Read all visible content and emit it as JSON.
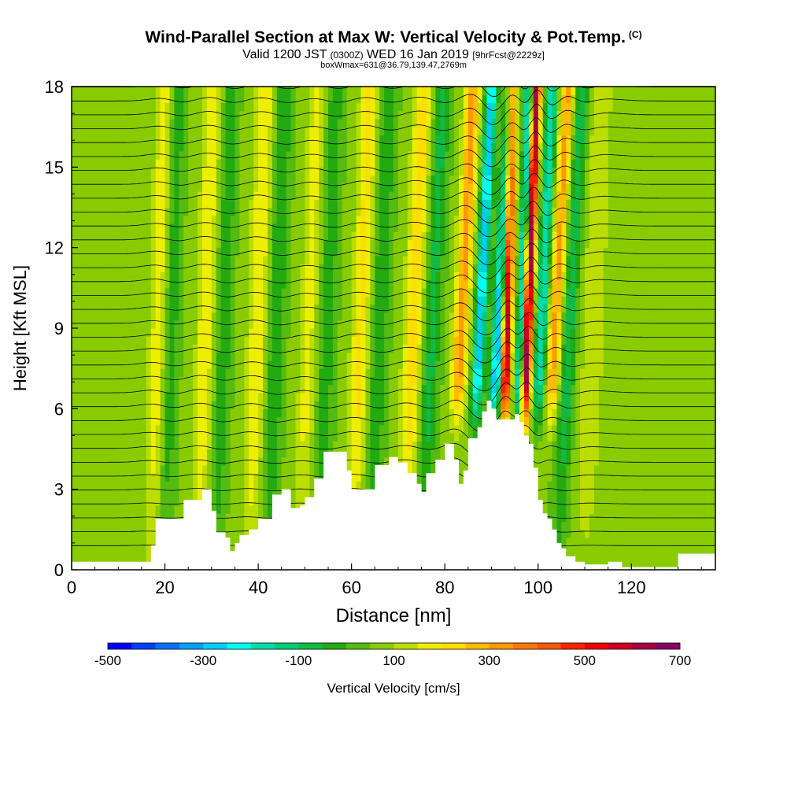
{
  "header": {
    "title": "Wind-Parallel Section at Max W: Vertical Velocity & Pot.Temp.",
    "copyright": "(C)",
    "valid_a": "Valid 1200 JST",
    "valid_utc": "(0300Z)",
    "valid_b": "WED 16 Jan 2019",
    "forecast": "[9hrFcst@2229z]",
    "boxinfo": "boxWmax=631@36.79,139.47,2769m"
  },
  "chart_data": {
    "type": "heatmap",
    "xlabel": "Distance [nm]",
    "ylabel": "Height [Kft MSL]",
    "xlim": [
      0,
      138
    ],
    "ylim": [
      0,
      18
    ],
    "xticks": [
      0,
      20,
      40,
      60,
      80,
      100,
      120
    ],
    "yticks": [
      0,
      3,
      6,
      9,
      12,
      15,
      18
    ],
    "colorbar": {
      "label": "Vertical Velocity [cm/s]",
      "range": [
        -500,
        700
      ],
      "step": 50,
      "ticks": [
        -500,
        -300,
        -100,
        100,
        300,
        500,
        700
      ],
      "colors": [
        "#0000ff",
        "#0040ff",
        "#0070ff",
        "#00a0ff",
        "#00ccff",
        "#00ffee",
        "#00ddaa",
        "#00cc77",
        "#10bb44",
        "#22aa11",
        "#55bb11",
        "#88cc00",
        "#bbdd00",
        "#eeee00",
        "#ffdd00",
        "#ffbb00",
        "#ff9900",
        "#ff7700",
        "#ff5500",
        "#ff2200",
        "#ee0000",
        "#cc0022",
        "#aa0044",
        "#880066"
      ]
    },
    "terrain": {
      "x": [
        0,
        12,
        17,
        18,
        22,
        24,
        27,
        28,
        30,
        31,
        33,
        34,
        35,
        36,
        38,
        40,
        43,
        45,
        47,
        49,
        50,
        52,
        54,
        57,
        59,
        60,
        62,
        65,
        68,
        70,
        72,
        74,
        75,
        76,
        78,
        80,
        82,
        83,
        84,
        85,
        87,
        88,
        89,
        90,
        91,
        92,
        94,
        95,
        96,
        97,
        98,
        99,
        100,
        101,
        102,
        103,
        104,
        105,
        106,
        108,
        110,
        113,
        115,
        118,
        128,
        130,
        138
      ],
      "height": [
        0.3,
        0.3,
        0.9,
        1.9,
        1.9,
        2.6,
        2.6,
        3.0,
        2.2,
        1.4,
        1.2,
        0.7,
        1.0,
        1.3,
        1.5,
        1.9,
        2.8,
        3.0,
        2.3,
        2.4,
        2.7,
        3.4,
        4.4,
        4.4,
        3.7,
        3.0,
        3.0,
        3.9,
        4.2,
        4.0,
        3.6,
        3.2,
        2.9,
        3.6,
        4.1,
        4.7,
        4.1,
        3.2,
        3.7,
        4.9,
        5.3,
        5.9,
        6.3,
        6.0,
        5.6,
        5.6,
        5.6,
        5.8,
        5.5,
        5.0,
        4.7,
        3.8,
        2.6,
        2.1,
        1.9,
        1.5,
        1.0,
        0.8,
        0.5,
        0.3,
        0.2,
        0.2,
        0.3,
        0.1,
        0.1,
        0.6,
        0.6
      ]
    },
    "w_fields": [
      {
        "x0": 17,
        "lean": -0.16,
        "width": 1.8,
        "amp": 120
      },
      {
        "x0": 20,
        "lean": -0.16,
        "width": 1.6,
        "amp": -90
      },
      {
        "x0": 27,
        "lean": -0.18,
        "width": 1.8,
        "amp": 140
      },
      {
        "x0": 31,
        "lean": -0.18,
        "width": 1.6,
        "amp": -100
      },
      {
        "x0": 38,
        "lean": -0.2,
        "width": 2.0,
        "amp": 140
      },
      {
        "x0": 42,
        "lean": -0.2,
        "width": 1.8,
        "amp": -110
      },
      {
        "x0": 49,
        "lean": -0.2,
        "width": 1.8,
        "amp": 110
      },
      {
        "x0": 53,
        "lean": -0.2,
        "width": 1.8,
        "amp": -90
      },
      {
        "x0": 60,
        "lean": -0.22,
        "width": 2.0,
        "amp": 150
      },
      {
        "x0": 64,
        "lean": -0.22,
        "width": 1.8,
        "amp": -110
      },
      {
        "x0": 71,
        "lean": -0.25,
        "width": 2.0,
        "amp": 170
      },
      {
        "x0": 75,
        "lean": -0.25,
        "width": 1.8,
        "amp": -130
      },
      {
        "x0": 81,
        "lean": -0.28,
        "width": 1.6,
        "amp": 260
      },
      {
        "x0": 85,
        "lean": -0.28,
        "width": 1.2,
        "amp": -340
      },
      {
        "x0": 89,
        "lean": -0.3,
        "width": 1.4,
        "amp": -420
      },
      {
        "x0": 91.8,
        "lean": -0.15,
        "width": 1.1,
        "amp": 640
      },
      {
        "x0": 94.5,
        "lean": -0.2,
        "width": 0.9,
        "amp": -300
      },
      {
        "x0": 96,
        "lean": -0.2,
        "width": 1.0,
        "amp": 590
      },
      {
        "x0": 98.5,
        "lean": -0.25,
        "width": 1.2,
        "amp": -260
      },
      {
        "x0": 101,
        "lean": -0.3,
        "width": 1.4,
        "amp": 260
      },
      {
        "x0": 104,
        "lean": -0.3,
        "width": 1.6,
        "amp": -150
      },
      {
        "x0": 110,
        "lean": -0.2,
        "width": 2.5,
        "amp": 80
      }
    ],
    "theta_levels": 34
  }
}
